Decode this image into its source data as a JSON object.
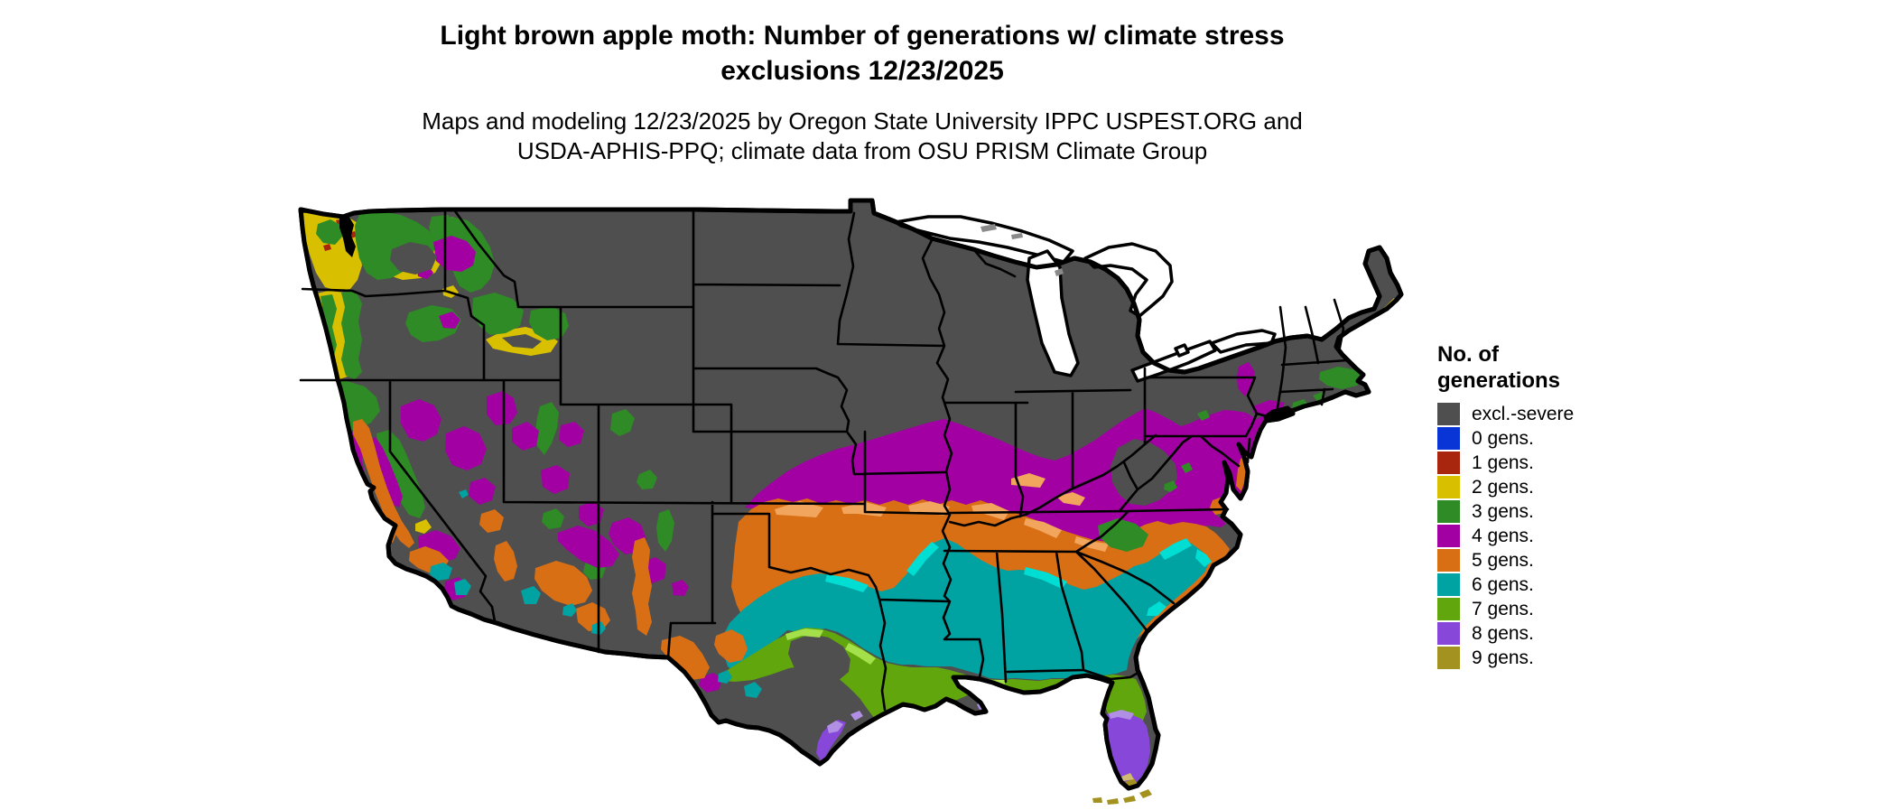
{
  "header": {
    "title": "Light brown apple moth: Number of generations w/ climate stress\nexclusions 12/23/2025",
    "subtitle": "Maps and modeling 12/23/2025 by Oregon State University IPPC USPEST.ORG and\nUSDA-APHIS-PPQ; climate data from OSU PRISM Climate Group"
  },
  "legend": {
    "title": "No. of\ngenerations",
    "items": [
      {
        "key": "excl",
        "label": "excl.-severe",
        "color": "#4f4f4f"
      },
      {
        "key": "g0",
        "label": "0 gens.",
        "color": "#0a35d6"
      },
      {
        "key": "g1",
        "label": "1 gens.",
        "color": "#a8250e"
      },
      {
        "key": "g2",
        "label": "2 gens.",
        "color": "#d8c000"
      },
      {
        "key": "g3",
        "label": "3 gens.",
        "color": "#2e8b25"
      },
      {
        "key": "g4",
        "label": "4 gens.",
        "color": "#a300a3"
      },
      {
        "key": "g5",
        "label": "5 gens.",
        "color": "#d96f15"
      },
      {
        "key": "g6",
        "label": "6 gens.",
        "color": "#00a2a2"
      },
      {
        "key": "g7",
        "label": "7 gens.",
        "color": "#61a60c"
      },
      {
        "key": "g8",
        "label": "8 gens.",
        "color": "#8747d9"
      },
      {
        "key": "g9",
        "label": "9 gens.",
        "color": "#a39220"
      }
    ]
  },
  "map": {
    "description": "Contiguous United States raster map of modeled light brown apple moth generations per year with climate stress exclusions",
    "base_fill": "#4f4f4f",
    "border_color": "#000000",
    "accents": {
      "cyanf": "#00ddd2",
      "limef": "#a4e04a",
      "lilacf": "#b18fe4",
      "olight": "#f2a55c",
      "khaki": "#cfbc72",
      "island": "#8a8a8a",
      "water": "#ffffff"
    }
  }
}
